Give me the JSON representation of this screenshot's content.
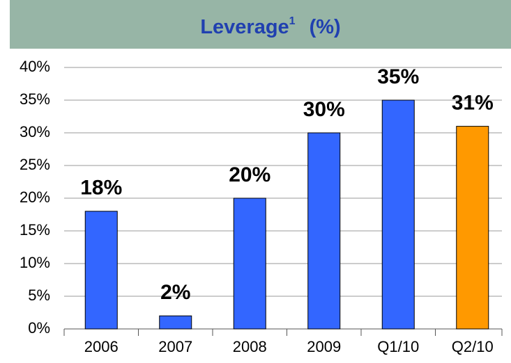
{
  "chart_data": {
    "type": "bar",
    "title": "Leverage",
    "title_note": "1",
    "title_unit": "(%)",
    "categories": [
      "2006",
      "2007",
      "2008",
      "2009",
      "Q1/10",
      "Q2/10"
    ],
    "values": [
      18,
      2,
      20,
      30,
      35,
      31
    ],
    "value_labels": [
      "18%",
      "2%",
      "20%",
      "30%",
      "35%",
      "31%"
    ],
    "colors": [
      "#3366ff",
      "#3366ff",
      "#3366ff",
      "#3366ff",
      "#3366ff",
      "#ff9900"
    ],
    "ylim": [
      0,
      40
    ],
    "yticks": [
      {
        "value": 0,
        "label": "0%"
      },
      {
        "value": 5,
        "label": "5%"
      },
      {
        "value": 10,
        "label": "10%"
      },
      {
        "value": 15,
        "label": "15%"
      },
      {
        "value": 20,
        "label": "20%"
      },
      {
        "value": 25,
        "label": "25%"
      },
      {
        "value": 30,
        "label": "30%"
      },
      {
        "value": 35,
        "label": "35%"
      },
      {
        "value": 40,
        "label": "40%"
      }
    ],
    "grid": true
  }
}
